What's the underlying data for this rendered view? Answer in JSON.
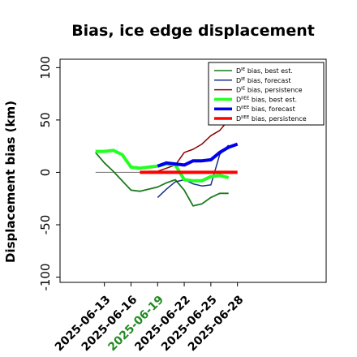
{
  "chart_data": {
    "type": "line",
    "title": "Bias, ice edge displacement",
    "xlabel": "",
    "ylabel": "Displacement bias (km)",
    "ylim": [
      -105,
      108
    ],
    "xlim": [
      -5,
      25
    ],
    "y_ticks": [
      -100,
      -50,
      0,
      50,
      100
    ],
    "x_tick_positions": [
      0,
      3,
      6,
      9,
      12,
      15
    ],
    "x_tick_labels": [
      "2025-06-13",
      "2025-06-16",
      "2025-06-19",
      "2025-06-22",
      "2025-06-25",
      "2025-06-28"
    ],
    "highlight_tick": "2025-06-19",
    "highlight_color": "#228B22",
    "grid": false,
    "legend_position": "top-right",
    "zero_line_color": "#808080",
    "x": [
      -1,
      0,
      1,
      2,
      3,
      4,
      5,
      6,
      7,
      8,
      9,
      10,
      11,
      12,
      13,
      14,
      15
    ],
    "series": [
      {
        "name": "D^IE bias, best est.",
        "legend_sup": "IE",
        "legend_text": "bias, best est.",
        "color": "#1a7a1a",
        "width": 1.8,
        "values": [
          19,
          9,
          1,
          -8,
          -17,
          -18,
          -16,
          -14,
          -10,
          -7,
          -17,
          -32,
          -30,
          -24,
          -20,
          -20,
          null
        ]
      },
      {
        "name": "D^IE bias, forecast",
        "legend_sup": "IE",
        "legend_text": "bias, forecast",
        "color": "#1a2e8a",
        "width": 1.5,
        "values": [
          null,
          null,
          null,
          null,
          null,
          null,
          null,
          -24,
          -16,
          -9,
          -7,
          -11,
          -13,
          -12,
          17,
          26,
          null
        ]
      },
      {
        "name": "D^IE bias, persistence",
        "legend_sup": "IE",
        "legend_text": "bias, persistence",
        "color": "#8b0000",
        "width": 1.5,
        "values": [
          null,
          null,
          null,
          null,
          null,
          null,
          1,
          1,
          4,
          7,
          19,
          22,
          27,
          35,
          40,
          50,
          null
        ]
      },
      {
        "name": "D^IIEE bias, best est.",
        "legend_sup": "IIEE",
        "legend_text": "bias, best est.",
        "color": "#22ff22",
        "width": 4,
        "values": [
          20,
          20,
          21,
          17,
          5,
          4,
          5,
          6,
          8,
          7,
          -7,
          -8,
          -8,
          -4,
          -3,
          -5,
          null
        ]
      },
      {
        "name": "D^IIEE bias, forecast",
        "legend_sup": "IIEE",
        "legend_text": "bias, forecast",
        "color": "#0000ee",
        "width": 4,
        "values": [
          null,
          null,
          null,
          null,
          null,
          null,
          null,
          6,
          9,
          8,
          7,
          11,
          11,
          12,
          19,
          24,
          27
        ]
      },
      {
        "name": "D^IIEE bias, persistence",
        "legend_sup": "IIEE",
        "legend_text": "bias, persistence",
        "color": "#ff0000",
        "width": 4,
        "values": [
          null,
          null,
          null,
          null,
          null,
          0,
          0,
          0,
          0,
          0,
          0,
          0,
          0,
          0,
          0,
          0,
          0
        ]
      }
    ],
    "zero_line": {
      "x_start": -1,
      "x_end": 5,
      "y": 0
    }
  }
}
